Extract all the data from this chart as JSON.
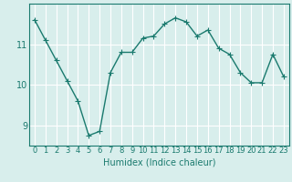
{
  "x": [
    0,
    1,
    2,
    3,
    4,
    5,
    6,
    7,
    8,
    9,
    10,
    11,
    12,
    13,
    14,
    15,
    16,
    17,
    18,
    19,
    20,
    21,
    22,
    23
  ],
  "y": [
    11.6,
    11.1,
    10.6,
    10.1,
    9.6,
    8.75,
    8.85,
    10.3,
    10.8,
    10.8,
    11.15,
    11.2,
    11.5,
    11.65,
    11.55,
    11.2,
    11.35,
    10.9,
    10.75,
    10.3,
    10.05,
    10.05,
    10.75,
    10.2
  ],
  "line_color": "#1a7a6e",
  "marker": "+",
  "marker_size": 4,
  "bg_color": "#d8eeec",
  "grid_color": "#ffffff",
  "xlabel": "Humidex (Indice chaleur)",
  "yticks": [
    9,
    10,
    11
  ],
  "xlim": [
    -0.5,
    23.5
  ],
  "ylim": [
    8.5,
    12.0
  ],
  "xlabel_fontsize": 7,
  "tick_fontsize": 7,
  "line_width": 1.0
}
